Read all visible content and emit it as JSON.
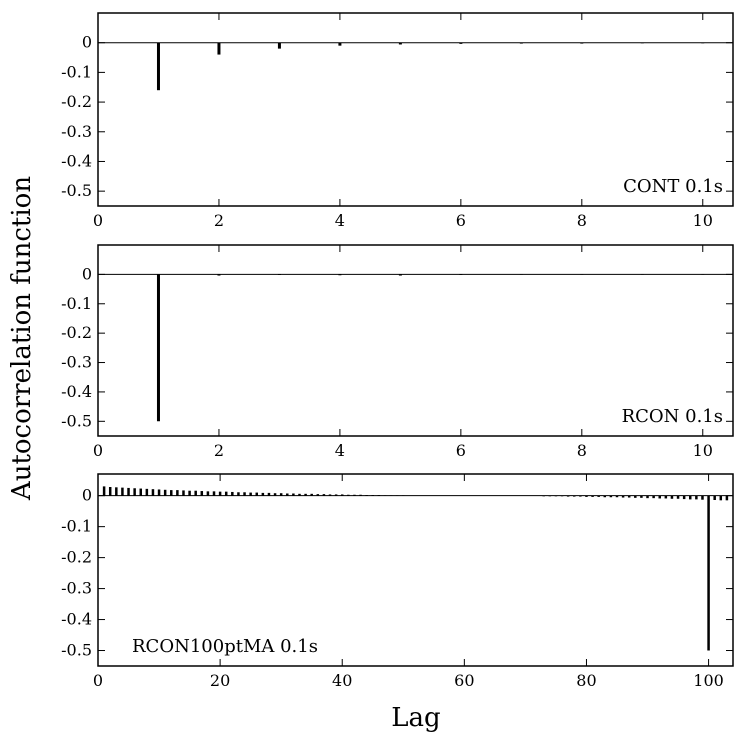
{
  "figure": {
    "ylabel": "Autocorrelation function",
    "xlabel": "Lag"
  },
  "chart_data": [
    {
      "type": "bar",
      "label": "CONT 0.1s",
      "label_position": "bottom-right",
      "xlim": [
        0,
        10.5
      ],
      "ylim": [
        -0.55,
        0.1
      ],
      "x_ticks": [
        0,
        2,
        4,
        6,
        8,
        10
      ],
      "y_ticks": [
        0,
        -0.1,
        -0.2,
        -0.3,
        -0.4,
        -0.5
      ],
      "y_tick_labels": [
        "0",
        "-0.1",
        "-0.2",
        "-0.3",
        "-0.4",
        "-0.5"
      ],
      "x": [
        1,
        2,
        3,
        4,
        5,
        6,
        7,
        8,
        9,
        10
      ],
      "values": [
        -0.16,
        -0.04,
        -0.02,
        -0.01,
        -0.006,
        -0.004,
        -0.003,
        -0.003,
        -0.002,
        -0.002
      ]
    },
    {
      "type": "bar",
      "label": "RCON 0.1s",
      "label_position": "bottom-right",
      "xlim": [
        0,
        10.5
      ],
      "ylim": [
        -0.55,
        0.1
      ],
      "x_ticks": [
        0,
        2,
        4,
        6,
        8,
        10
      ],
      "y_ticks": [
        0,
        -0.1,
        -0.2,
        -0.3,
        -0.4,
        -0.5
      ],
      "y_tick_labels": [
        "0",
        "-0.1",
        "-0.2",
        "-0.3",
        "-0.4",
        "-0.5"
      ],
      "x": [
        1,
        2,
        3,
        4,
        5,
        6,
        7,
        8,
        9,
        10
      ],
      "values": [
        -0.5,
        -0.004,
        -0.002,
        -0.003,
        -0.004,
        -0.002,
        -0.001,
        -0.001,
        -0.001,
        -0.001
      ]
    },
    {
      "type": "bar",
      "label": "RCON100ptMA 0.1s",
      "label_position": "bottom-left",
      "xlim": [
        0,
        104
      ],
      "ylim": [
        -0.55,
        0.07
      ],
      "x_ticks": [
        0,
        20,
        40,
        60,
        80,
        100
      ],
      "y_ticks": [
        0,
        -0.1,
        -0.2,
        -0.3,
        -0.4,
        -0.5
      ],
      "y_tick_labels": [
        "0",
        "-0.1",
        "-0.2",
        "-0.3",
        "-0.4",
        "-0.5"
      ],
      "x": [
        1,
        2,
        3,
        4,
        5,
        6,
        7,
        8,
        9,
        10,
        11,
        12,
        13,
        14,
        15,
        16,
        17,
        18,
        19,
        20,
        21,
        22,
        23,
        24,
        25,
        26,
        27,
        28,
        29,
        30,
        31,
        32,
        33,
        34,
        35,
        36,
        37,
        38,
        39,
        40,
        41,
        42,
        43,
        44,
        45,
        46,
        47,
        48,
        49,
        50,
        51,
        52,
        53,
        54,
        55,
        56,
        57,
        58,
        59,
        60,
        61,
        62,
        63,
        64,
        65,
        66,
        67,
        68,
        69,
        70,
        71,
        72,
        73,
        74,
        75,
        76,
        77,
        78,
        79,
        80,
        81,
        82,
        83,
        84,
        85,
        86,
        87,
        88,
        89,
        90,
        91,
        92,
        93,
        94,
        95,
        96,
        97,
        98,
        99,
        100,
        101,
        102,
        103
      ],
      "values": [
        0.03,
        0.028,
        0.027,
        0.026,
        0.025,
        0.024,
        0.023,
        0.022,
        0.021,
        0.02,
        0.019,
        0.018,
        0.018,
        0.017,
        0.016,
        0.016,
        0.015,
        0.014,
        0.014,
        0.013,
        0.013,
        0.012,
        0.011,
        0.011,
        0.01,
        0.01,
        0.009,
        0.009,
        0.008,
        0.008,
        0.007,
        0.007,
        0.006,
        0.006,
        0.006,
        0.005,
        0.005,
        0.004,
        0.004,
        0.004,
        0.003,
        0.003,
        0.003,
        0.002,
        0.002,
        0.002,
        0.001,
        0.001,
        0.001,
        0.001,
        0.0,
        0.0,
        0.0,
        0.0,
        0.0,
        0.0,
        0.0,
        0.0,
        0.0,
        0.0,
        0.0,
        0.0,
        0.0,
        0.0,
        0.0,
        0.0,
        0.0,
        0.0,
        -0.001,
        -0.001,
        -0.001,
        -0.001,
        -0.002,
        -0.002,
        -0.002,
        -0.002,
        -0.003,
        -0.003,
        -0.003,
        -0.004,
        -0.004,
        -0.004,
        -0.005,
        -0.005,
        -0.005,
        -0.006,
        -0.006,
        -0.007,
        -0.007,
        -0.008,
        -0.008,
        -0.009,
        -0.009,
        -0.01,
        -0.01,
        -0.011,
        -0.012,
        -0.012,
        -0.013,
        -0.5,
        -0.014,
        -0.015,
        -0.015
      ]
    }
  ]
}
